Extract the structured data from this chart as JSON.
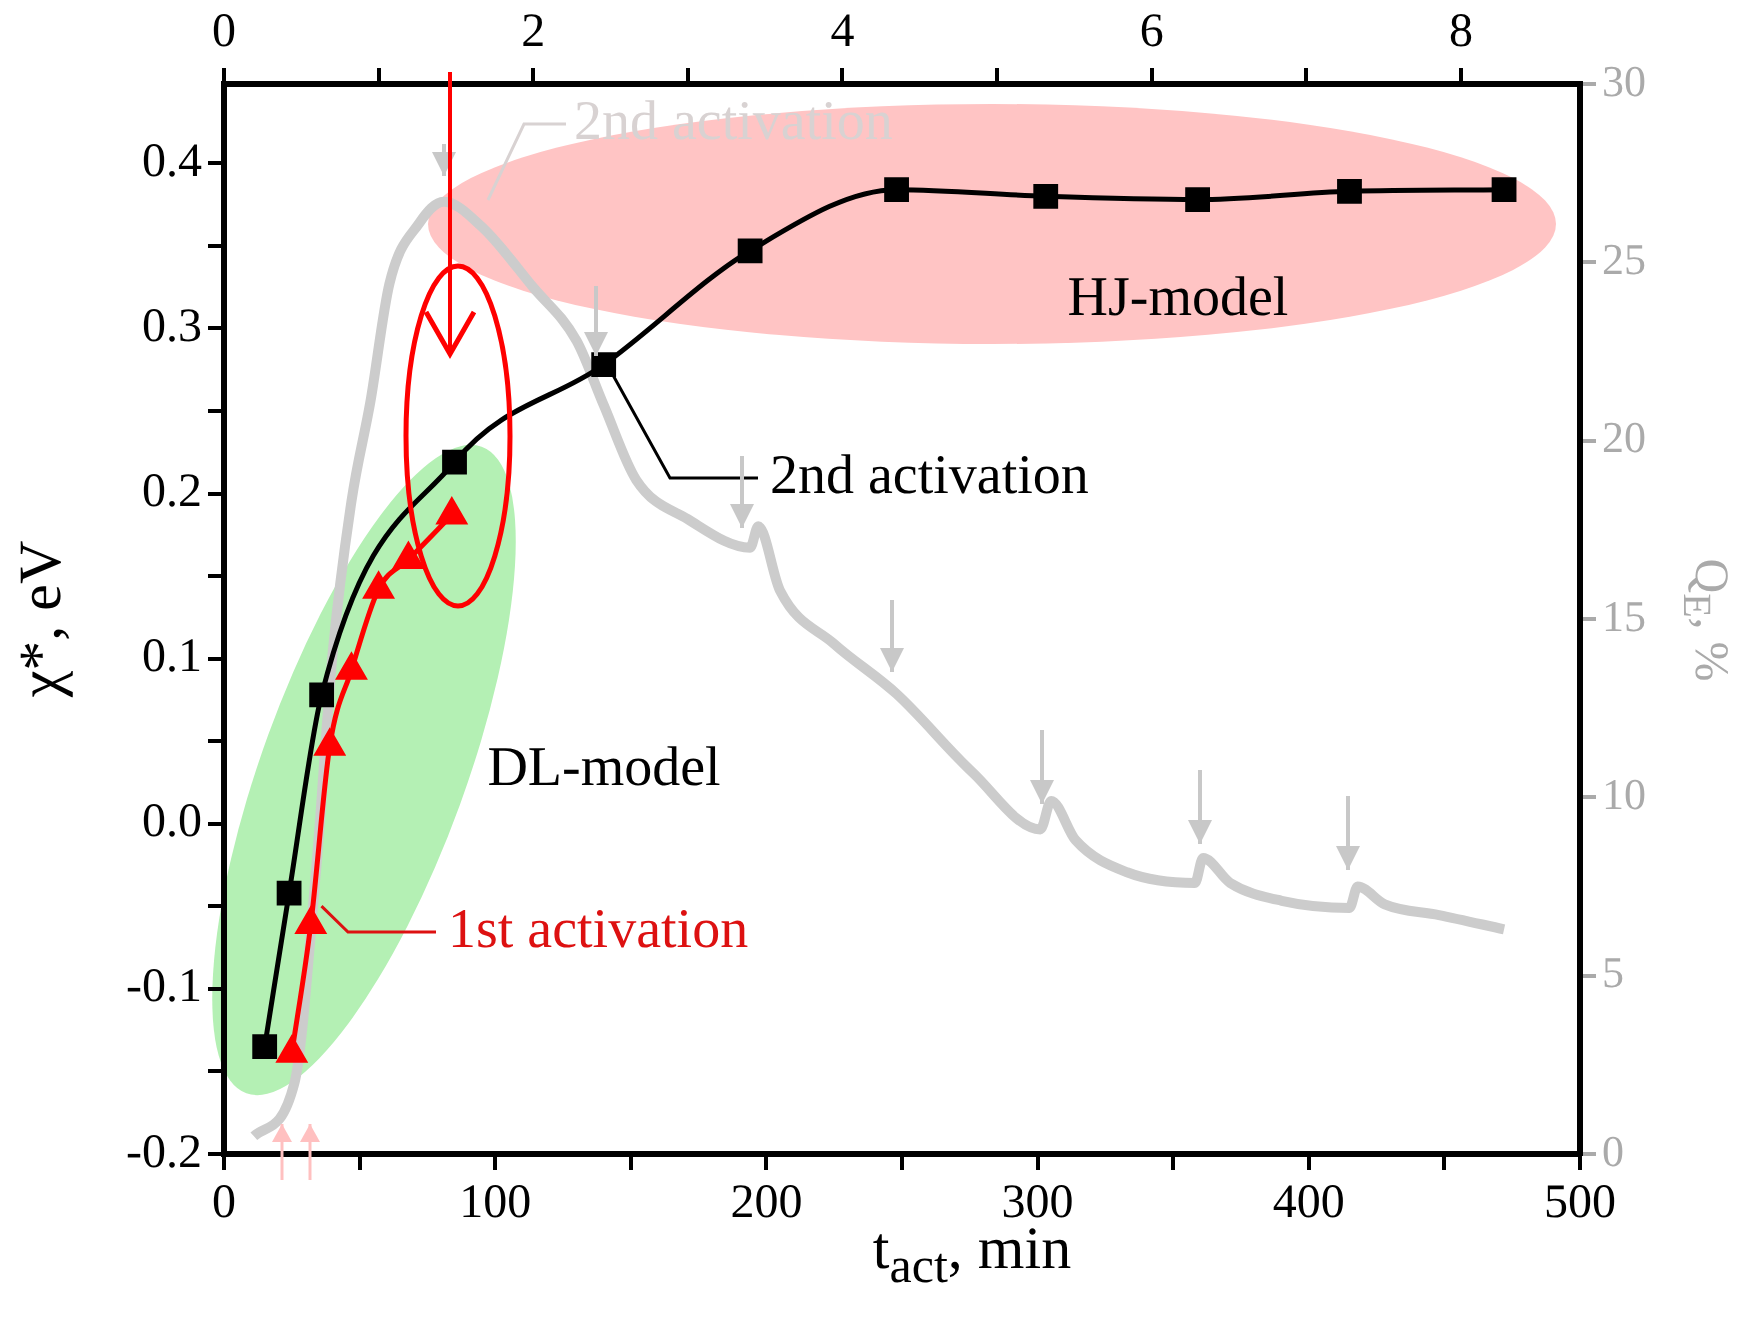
{
  "chart_data": {
    "type": "line",
    "xlabel": "t$_{act}$, min",
    "ylabel": "χ*, eV",
    "y2label": "Q$_{E}$, %",
    "xlim": [
      0,
      500
    ],
    "xticks": [
      0,
      {
        "value": 50,
        "label": null
      },
      100,
      {
        "value": 150,
        "label": null
      },
      200,
      {
        "value": 250,
        "label": null
      },
      300,
      {
        "value": 350,
        "label": null
      },
      400,
      {
        "value": 450,
        "label": null
      },
      500
    ],
    "x2lim": [
      0,
      8.77
    ],
    "x2ticks": [
      0,
      {
        "value": 1,
        "label": null
      },
      2,
      {
        "value": 3,
        "label": null
      },
      4,
      {
        "value": 5,
        "label": null
      },
      6,
      {
        "value": 7,
        "label": null
      },
      8
    ],
    "ylim": [
      -0.2,
      0.448
    ],
    "yticks": [
      -0.2,
      {
        "value": -0.15,
        "label": null
      },
      -0.1,
      {
        "value": -0.05,
        "label": null
      },
      {
        "value": 0,
        "label": "0.0"
      },
      {
        "value": 0.05,
        "label": null
      },
      0.1,
      {
        "value": 0.15,
        "label": null
      },
      0.2,
      {
        "value": 0.25,
        "label": null
      },
      0.3,
      {
        "value": 0.35,
        "label": null
      },
      0.4
    ],
    "y2lim": [
      0,
      30
    ],
    "y2ticks": [
      0,
      5,
      10,
      15,
      20,
      25,
      30
    ],
    "grid": false,
    "legend": false,
    "line_style": "solid",
    "series": [
      {
        "type": "line",
        "axis": "y2",
        "color": "#cccccc",
        "marker": "none",
        "x": [
          11,
          26,
          34,
          40,
          47,
          54,
          61,
          72,
          81,
          95,
          114,
          130,
          140,
          152,
          171,
          194,
          197,
          205,
          225,
          248,
          276,
          301,
          305,
          314,
          333,
          358,
          361,
          371,
          390,
          415,
          418,
          428,
          448,
          472
        ],
        "values": [
          0.5,
          2,
          8,
          14,
          18.3,
          21.1,
          24.4,
          26.1,
          26.7,
          26.0,
          24.3,
          22.8,
          21.0,
          18.9,
          17.8,
          17.0,
          17.6,
          15.8,
          14.3,
          12.9,
          10.7,
          9.1,
          9.9,
          8.8,
          7.9,
          7.6,
          8.3,
          7.6,
          7.1,
          6.9,
          7.5,
          7.0,
          6.7,
          6.3
        ]
      },
      {
        "type": "line",
        "color": "#000000",
        "marker": "square",
        "x": [
          15,
          24,
          36,
          85,
          140,
          194,
          248,
          303,
          359,
          415,
          472
        ],
        "values": [
          -0.135,
          -0.042,
          0.078,
          0.219,
          0.278,
          0.347,
          0.384,
          0.38,
          0.378,
          0.383,
          0.384
        ]
      },
      {
        "type": "line",
        "color": "#ff0000",
        "marker": "triangle",
        "x": [
          25,
          32,
          39,
          47,
          57,
          68,
          84
        ],
        "values": [
          -0.139,
          -0.061,
          0.047,
          0.093,
          0.142,
          0.16,
          0.187
        ]
      }
    ],
    "annotations": [
      {
        "text": "2nd activation",
        "x": 140,
        "y": 0.278
      },
      {
        "text": "1st activation",
        "x": 33,
        "y": -0.045
      },
      "DL-model",
      "HJ-model",
      "2nd activation"
    ]
  }
}
